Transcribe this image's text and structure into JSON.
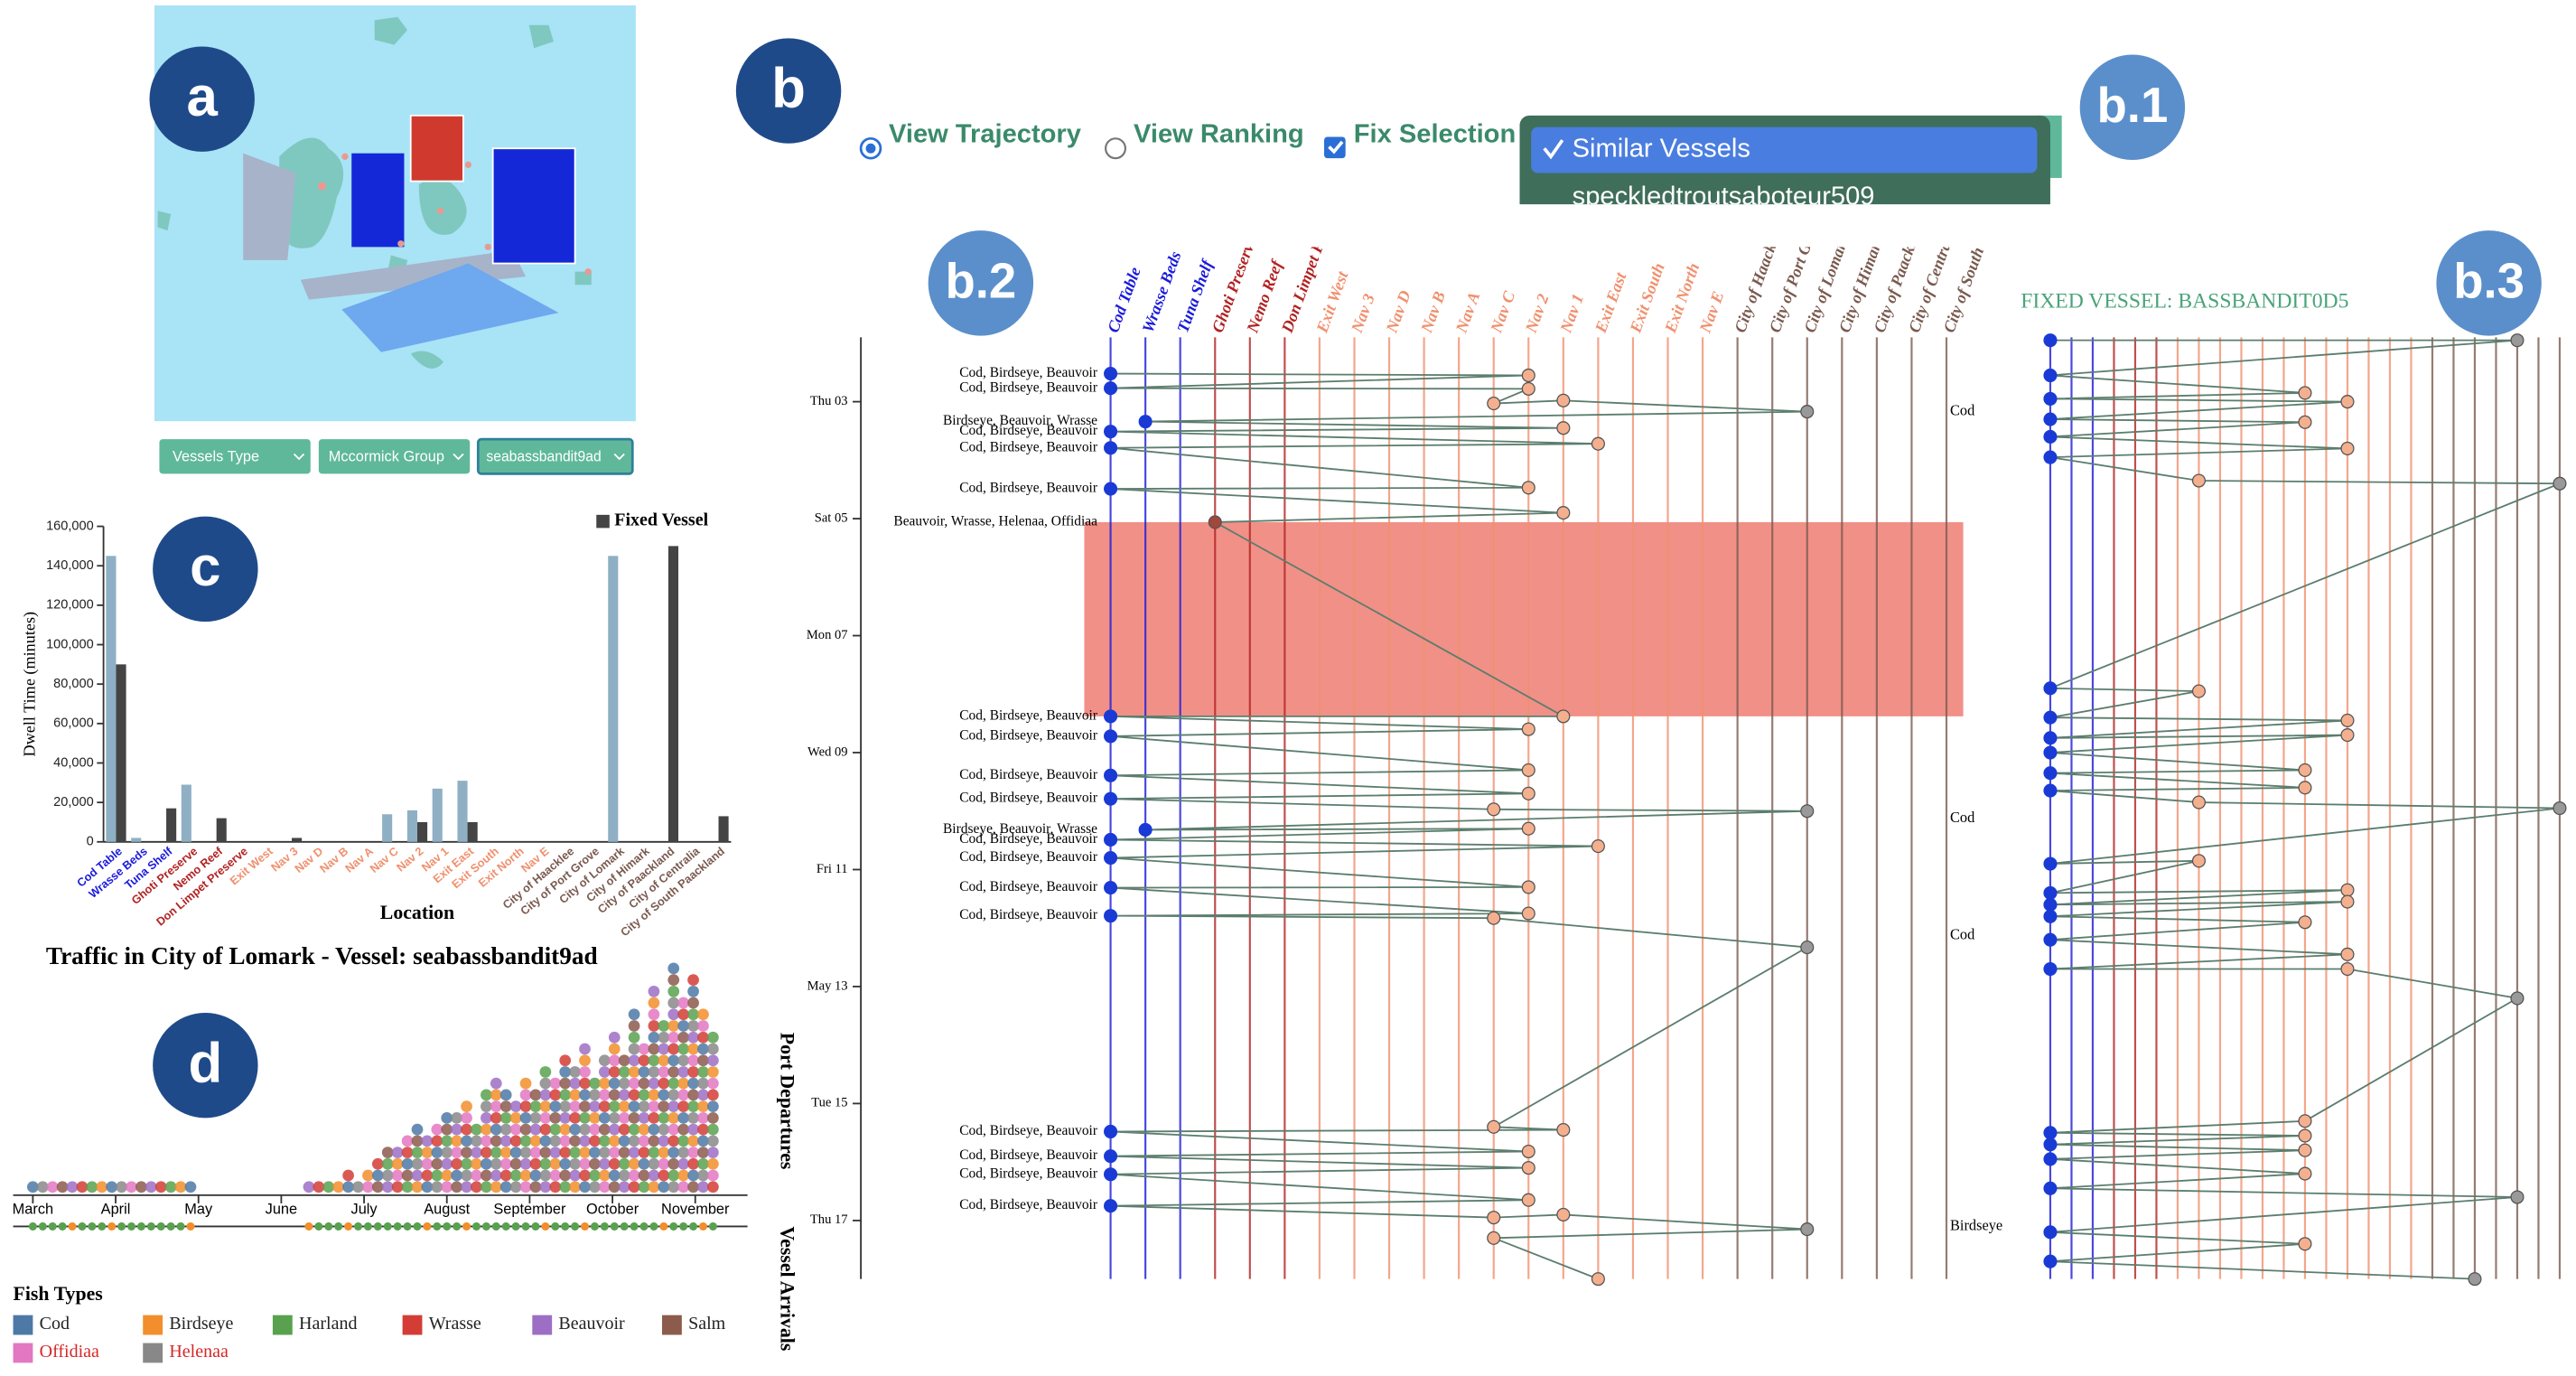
{
  "panel_labels": [
    "a",
    "b",
    "b.1",
    "b.2",
    "b.3",
    "c",
    "d"
  ],
  "map_filters": [
    "Vessels Type",
    "Mccormick Group",
    "seabassbandit9ad"
  ],
  "view_controls": [
    "View Trajectory",
    "View Ranking",
    "Fix Selection"
  ],
  "menu_items": [
    "Similar Vessels",
    "speckledtroutsaboteur509"
  ],
  "chart_data": [
    {
      "type": "bar",
      "y_label": "Dwell Time (minutes)",
      "x_label": "Location",
      "categories": [
        "Cod Table",
        "Wrasse Beds",
        "Tuna Shelf",
        "Ghoti Preserve",
        "Nemo Reef",
        "Don Limpet Preserve",
        "Exit West",
        "Nav 3",
        "Nav D",
        "Nav B",
        "Nav A",
        "Nav C",
        "Nav 2",
        "Nav 1",
        "Exit East",
        "Exit South",
        "Exit North",
        "Nav E",
        "City of Haacklee",
        "City of Port Grove",
        "City of Lomark",
        "City of Himark",
        "City of Paackland",
        "City of Centralia",
        "City of South Paackland"
      ],
      "category_colors": [
        "#1a1adb",
        "#1a1adb",
        "#1a1adb",
        "#b22222",
        "#b22222",
        "#b22222",
        "#f0906e",
        "#f0906e",
        "#f0906e",
        "#f0906e",
        "#f0906e",
        "#f0906e",
        "#f0906e",
        "#f0906e",
        "#f0906e",
        "#f0906e",
        "#f0906e",
        "#f0906e",
        "#7a5a4f",
        "#7a5a4f",
        "#7a5a4f",
        "#7a5a4f",
        "#7a5a4f",
        "#7a5a4f",
        "#7a5a4f"
      ],
      "series": [
        {
          "color": "#8fb0c4",
          "values": [
            145000,
            2000,
            0,
            29000,
            0,
            0,
            0,
            0,
            0,
            0,
            0,
            14000,
            16000,
            27000,
            31000,
            0,
            0,
            0,
            0,
            0,
            145000,
            0,
            0,
            0,
            0
          ]
        },
        {
          "name": "Fixed Vessel",
          "color": "#444444",
          "values": [
            90000,
            0,
            17000,
            0,
            12000,
            0,
            0,
            2000,
            0,
            0,
            0,
            0,
            10000,
            0,
            10000,
            0,
            0,
            0,
            0,
            0,
            0,
            0,
            150000,
            0,
            13000
          ]
        }
      ],
      "ylim": [
        0,
        160000
      ],
      "yticks": [
        0,
        {
          "value": 20000,
          "label": "20,000"
        },
        {
          "value": 40000,
          "label": "40,000"
        },
        {
          "value": 60000,
          "label": "60,000"
        },
        {
          "value": 80000,
          "label": "80,000"
        },
        {
          "value": 100000,
          "label": "100,000"
        },
        {
          "value": 120000,
          "label": "120,000"
        },
        {
          "value": 140000,
          "label": "140,000"
        },
        {
          "value": 160000,
          "label": "160,000"
        }
      ]
    },
    {
      "type": "trajectory",
      "ylim": [
        1.9,
        18
      ],
      "yticks": [
        {
          "value": 3,
          "label": "Thu 03"
        },
        {
          "value": 5,
          "label": "Sat 05"
        },
        {
          "value": 7,
          "label": "Mon 07"
        },
        {
          "value": 9,
          "label": "Wed 09"
        },
        {
          "value": 11,
          "label": "Fri 11"
        },
        {
          "value": 13,
          "label": "May 13"
        },
        {
          "value": 15,
          "label": "Tue 15"
        },
        {
          "value": 17,
          "label": "Thu 17"
        }
      ],
      "highlight": [
        5.06,
        8.38
      ],
      "highlight_color": "#ef7d72",
      "stops": [
        {
          "loc": 0,
          "day": 2.52,
          "label": "Cod, Birdseye, Beauvoir"
        },
        {
          "loc": 12,
          "day": 2.55
        },
        {
          "loc": 0,
          "day": 2.77,
          "label": "Cod, Birdseye, Beauvoir"
        },
        {
          "loc": 12,
          "day": 2.78
        },
        {
          "loc": 11,
          "day": 3.03
        },
        {
          "loc": 13,
          "day": 2.98
        },
        {
          "loc": 20,
          "day": 3.17
        },
        {
          "loc": 1,
          "day": 3.34,
          "label": "Birdseye, Beauvoir, Wrasse"
        },
        {
          "loc": 13,
          "day": 3.45
        },
        {
          "loc": 0,
          "day": 3.51,
          "label": "Cod, Birdseye, Beauvoir"
        },
        {
          "loc": 14,
          "day": 3.72
        },
        {
          "loc": 0,
          "day": 3.79,
          "label": "Cod, Birdseye, Beauvoir"
        },
        {
          "loc": 12,
          "day": 4.47
        },
        {
          "loc": 0,
          "day": 4.49,
          "label": "Cod, Birdseye, Beauvoir"
        },
        {
          "loc": 13,
          "day": 4.9
        },
        {
          "loc": 3,
          "day": 5.06,
          "label": "Beauvoir, Wrasse, Helenaa, Offidiaa"
        },
        {
          "loc": 13,
          "day": 8.38
        },
        {
          "loc": 0,
          "day": 8.38,
          "label": "Cod, Birdseye, Beauvoir"
        },
        {
          "loc": 12,
          "day": 8.6
        },
        {
          "loc": 0,
          "day": 8.72,
          "label": "Cod, Birdseye, Beauvoir"
        },
        {
          "loc": 12,
          "day": 9.3
        },
        {
          "loc": 0,
          "day": 9.39,
          "label": "Cod, Birdseye, Beauvoir"
        },
        {
          "loc": 12,
          "day": 9.7
        },
        {
          "loc": 0,
          "day": 9.79,
          "label": "Cod, Birdseye, Beauvoir"
        },
        {
          "loc": 11,
          "day": 9.97
        },
        {
          "loc": 20,
          "day": 10.0
        },
        {
          "loc": 1,
          "day": 10.32,
          "label": "Birdseye, Beauvoir, Wrasse"
        },
        {
          "loc": 12,
          "day": 10.3
        },
        {
          "loc": 0,
          "day": 10.49,
          "label": "Cod, Birdseye, Beauvoir"
        },
        {
          "loc": 14,
          "day": 10.6
        },
        {
          "loc": 0,
          "day": 10.8,
          "label": "Cod, Birdseye, Beauvoir"
        },
        {
          "loc": 12,
          "day": 11.3
        },
        {
          "loc": 0,
          "day": 11.31,
          "label": "Cod, Birdseye, Beauvoir"
        },
        {
          "loc": 12,
          "day": 11.75
        },
        {
          "loc": 0,
          "day": 11.79,
          "label": "Cod, Birdseye, Beauvoir"
        },
        {
          "loc": 11,
          "day": 11.83
        },
        {
          "loc": 20,
          "day": 12.33
        },
        {
          "loc": 11,
          "day": 15.4
        },
        {
          "loc": 13,
          "day": 15.45
        },
        {
          "loc": 0,
          "day": 15.48,
          "label": "Cod, Birdseye, Beauvoir"
        },
        {
          "loc": 12,
          "day": 15.82
        },
        {
          "loc": 0,
          "day": 15.9,
          "label": "Cod, Birdseye, Beauvoir"
        },
        {
          "loc": 12,
          "day": 16.1
        },
        {
          "loc": 0,
          "day": 16.21,
          "label": "Cod, Birdseye, Beauvoir"
        },
        {
          "loc": 12,
          "day": 16.65
        },
        {
          "loc": 0,
          "day": 16.75,
          "label": "Cod, Birdseye, Beauvoir"
        },
        {
          "loc": 11,
          "day": 16.95
        },
        {
          "loc": 13,
          "day": 16.9
        },
        {
          "loc": 20,
          "day": 17.15
        },
        {
          "loc": 11,
          "day": 17.3
        },
        {
          "loc": 14,
          "day": 18.0
        }
      ]
    },
    {
      "type": "trajectory",
      "title": "FIXED VESSEL: BASSBANDIT0D5",
      "ylim": [
        1.9,
        18
      ],
      "annotations": [
        {
          "day": 3.17,
          "label": "Cod"
        },
        {
          "day": 10.13,
          "label": "Cod"
        },
        {
          "day": 12.13,
          "label": "Cod"
        },
        {
          "day": 17.11,
          "label": "Birdseye"
        }
      ],
      "stops": [
        {
          "loc": 0,
          "day": 1.95
        },
        {
          "loc": 22,
          "day": 1.95
        },
        {
          "loc": 0,
          "day": 2.55
        },
        {
          "loc": 12,
          "day": 2.85
        },
        {
          "loc": 0,
          "day": 2.95
        },
        {
          "loc": 14,
          "day": 3.0
        },
        {
          "loc": 0,
          "day": 3.3
        },
        {
          "loc": 12,
          "day": 3.35
        },
        {
          "loc": 0,
          "day": 3.6
        },
        {
          "loc": 14,
          "day": 3.8
        },
        {
          "loc": 0,
          "day": 3.95
        },
        {
          "loc": 7,
          "day": 4.35
        },
        {
          "loc": 24,
          "day": 4.4
        },
        {
          "loc": 0,
          "day": 7.9
        },
        {
          "loc": 7,
          "day": 7.95
        },
        {
          "loc": 0,
          "day": 8.4
        },
        {
          "loc": 14,
          "day": 8.45
        },
        {
          "loc": 0,
          "day": 8.75
        },
        {
          "loc": 14,
          "day": 8.7
        },
        {
          "loc": 0,
          "day": 9.0
        },
        {
          "loc": 12,
          "day": 9.3
        },
        {
          "loc": 0,
          "day": 9.35
        },
        {
          "loc": 12,
          "day": 9.6
        },
        {
          "loc": 0,
          "day": 9.65
        },
        {
          "loc": 7,
          "day": 9.85
        },
        {
          "loc": 24,
          "day": 9.95
        },
        {
          "loc": 0,
          "day": 10.9
        },
        {
          "loc": 7,
          "day": 10.85
        },
        {
          "loc": 0,
          "day": 11.4
        },
        {
          "loc": 14,
          "day": 11.35
        },
        {
          "loc": 0,
          "day": 11.6
        },
        {
          "loc": 14,
          "day": 11.55
        },
        {
          "loc": 0,
          "day": 11.8
        },
        {
          "loc": 12,
          "day": 11.9
        },
        {
          "loc": 0,
          "day": 12.2
        },
        {
          "loc": 14,
          "day": 12.45
        },
        {
          "loc": 0,
          "day": 12.7
        },
        {
          "loc": 14,
          "day": 12.7
        },
        {
          "loc": 22,
          "day": 13.2
        },
        {
          "loc": 12,
          "day": 15.3
        },
        {
          "loc": 0,
          "day": 15.5
        },
        {
          "loc": 12,
          "day": 15.55
        },
        {
          "loc": 0,
          "day": 15.7
        },
        {
          "loc": 12,
          "day": 15.8
        },
        {
          "loc": 0,
          "day": 15.95
        },
        {
          "loc": 12,
          "day": 16.2
        },
        {
          "loc": 0,
          "day": 16.45
        },
        {
          "loc": 22,
          "day": 16.6
        },
        {
          "loc": 0,
          "day": 17.2
        },
        {
          "loc": 12,
          "day": 17.4
        },
        {
          "loc": 0,
          "day": 17.7
        },
        {
          "loc": 20,
          "day": 18.0
        }
      ]
    },
    {
      "type": "beeswarm",
      "title": "Traffic in City of Lomark - Vessel: seabassbandit9ad",
      "categories": [
        "March",
        "April",
        "May",
        "June",
        "July",
        "August",
        "September",
        "October",
        "November"
      ],
      "side_labels": [
        "Port Departures",
        "Vessel Arrivals"
      ],
      "departures": [
        1,
        1,
        1,
        1,
        1,
        1,
        1,
        1,
        1,
        1,
        1,
        1,
        1,
        1,
        1,
        1,
        1,
        0,
        0,
        0,
        0,
        0,
        0,
        0,
        0,
        0,
        0,
        0,
        1,
        1,
        1,
        1,
        2,
        1,
        2,
        3,
        4,
        4,
        5,
        6,
        5,
        6,
        7,
        7,
        8,
        6,
        9,
        10,
        9,
        8,
        10,
        9,
        11,
        10,
        12,
        11,
        13,
        10,
        12,
        14,
        12,
        16,
        13,
        18,
        15,
        20,
        17,
        19,
        16,
        14
      ],
      "legend_title": "Fish Types",
      "fish_types": [
        {
          "name": "Cod",
          "color": "#4e79a7",
          "label_color": "#222222"
        },
        {
          "name": "Birdseye",
          "color": "#f28e2b",
          "label_color": "#222222"
        },
        {
          "name": "Harland",
          "color": "#59a14f",
          "label_color": "#222222"
        },
        {
          "name": "Wrasse",
          "color": "#d43d35",
          "label_color": "#222222"
        },
        {
          "name": "Beauvoir",
          "color": "#9c6fc4",
          "label_color": "#222222"
        },
        {
          "name": "Salm",
          "color": "#8c5b4c",
          "label_color": "#222222"
        },
        {
          "name": "Offidiaa",
          "color": "#e377c2",
          "label_color": "#d62728"
        },
        {
          "name": "Helenaa",
          "color": "#888888",
          "label_color": "#d62728"
        }
      ]
    }
  ]
}
